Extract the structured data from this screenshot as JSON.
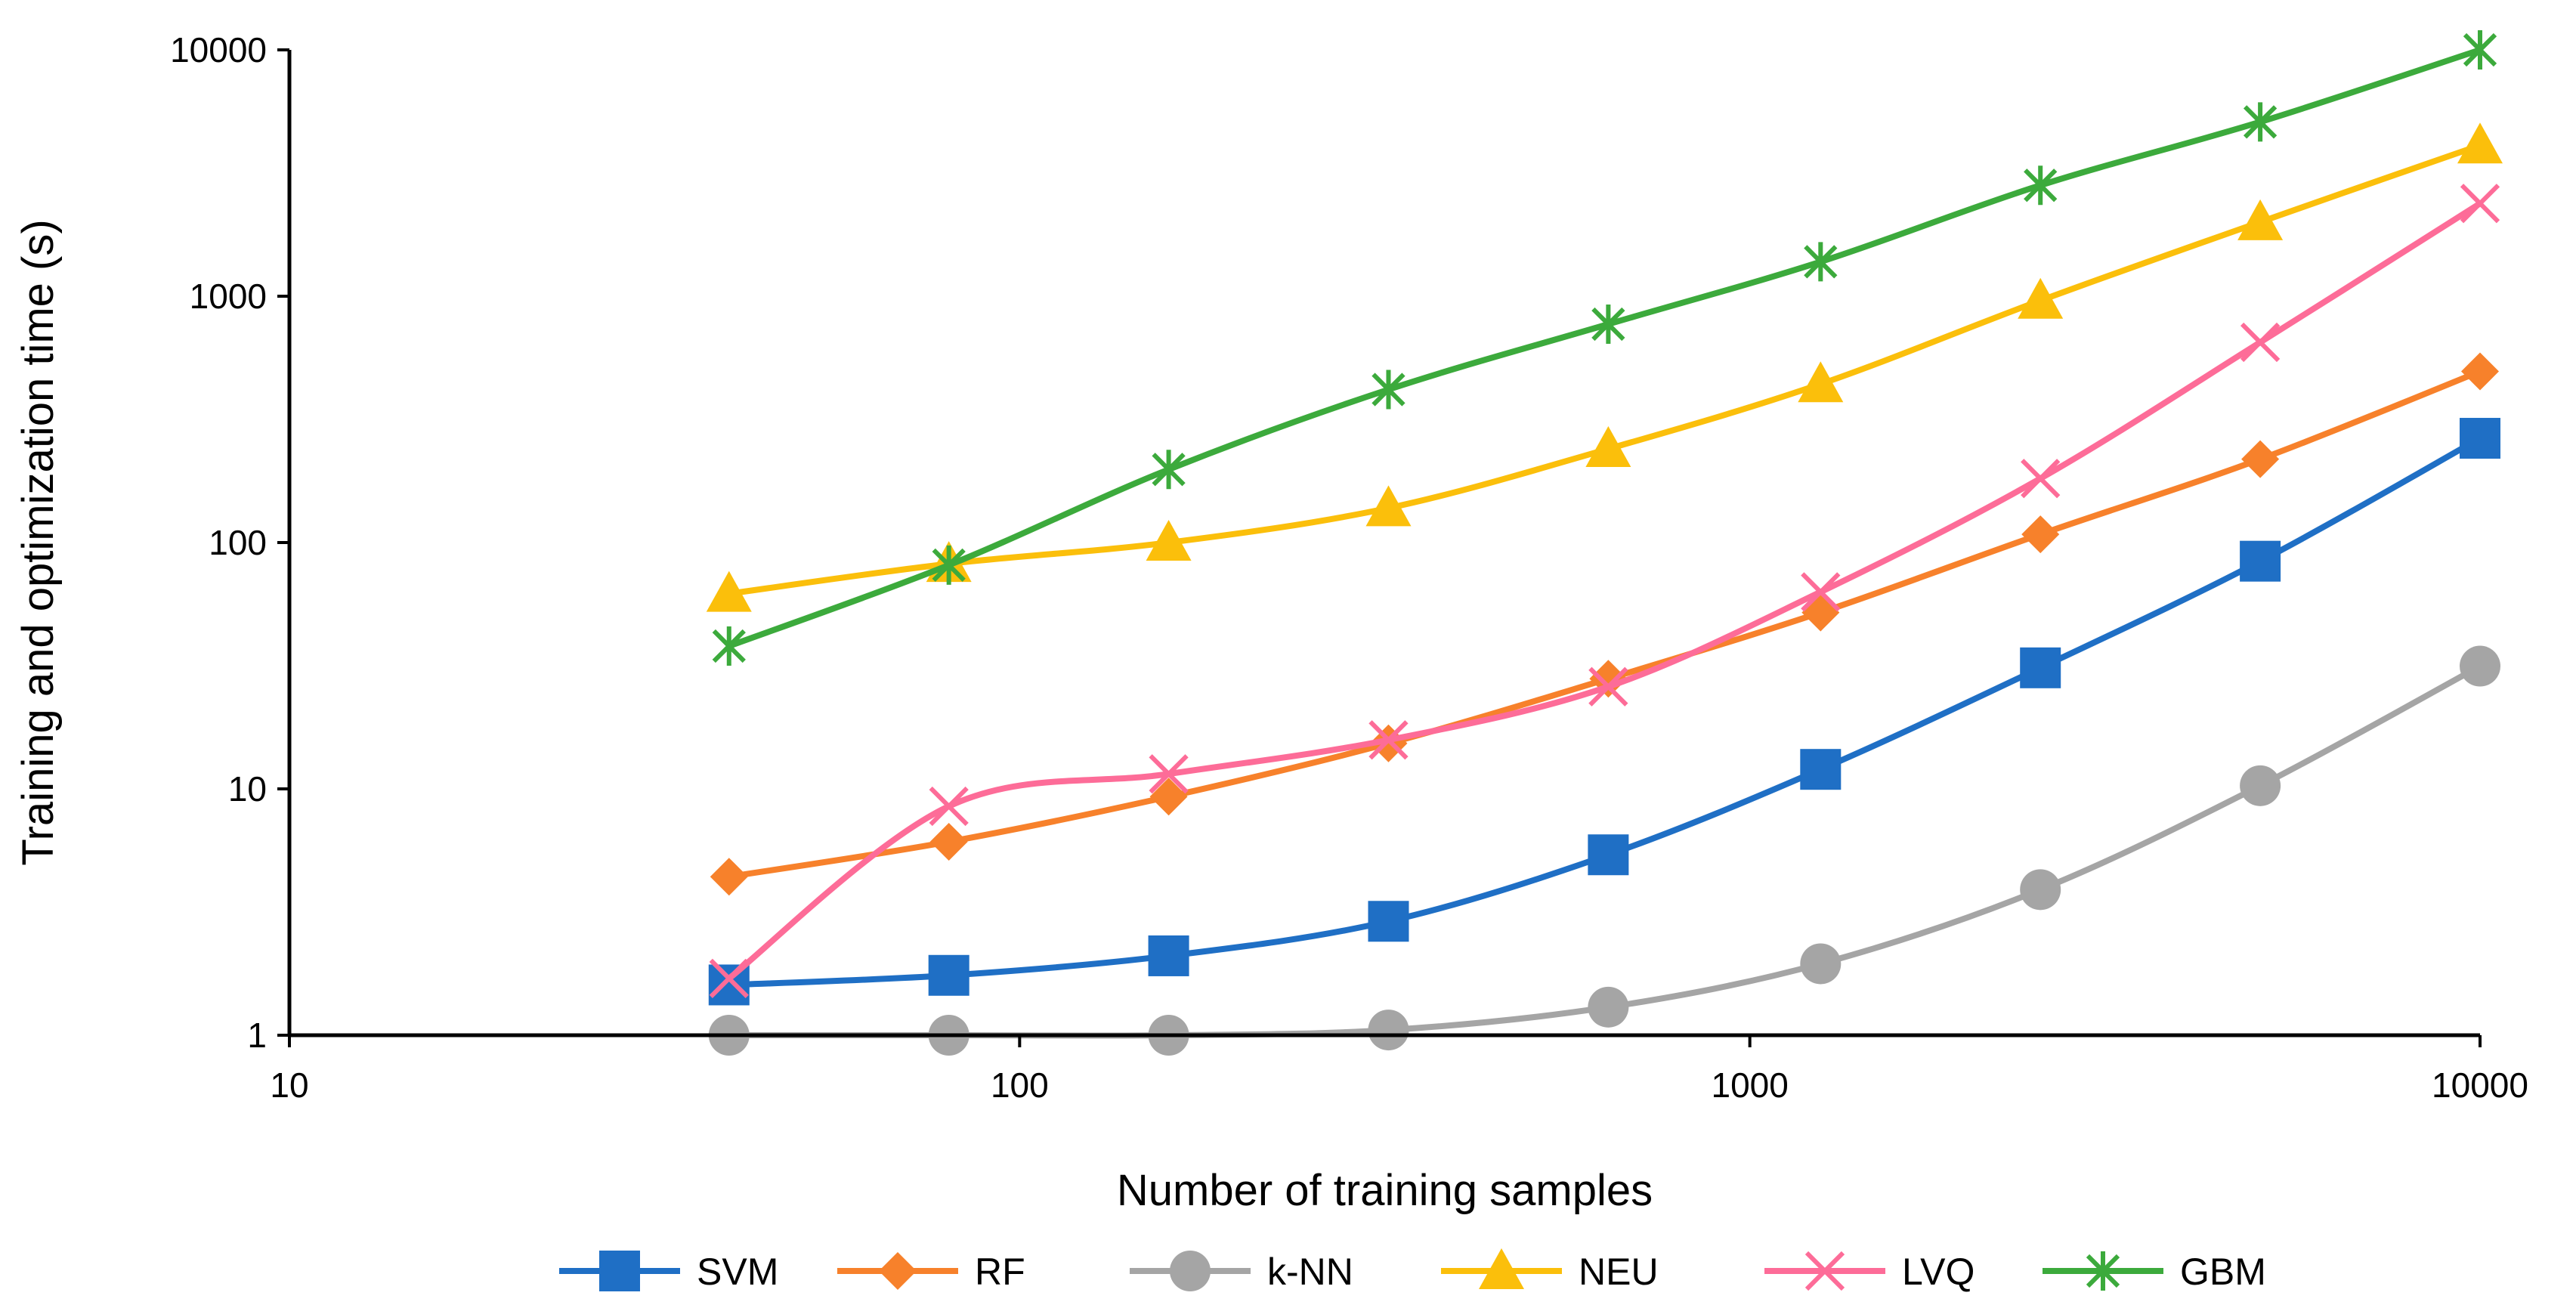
{
  "chart_data": {
    "type": "line",
    "title": "",
    "xlabel": "Number of training samples",
    "ylabel": "Training and optimization time (s)",
    "xscale": "log",
    "yscale": "log",
    "xlim": [
      10,
      10000
    ],
    "ylim": [
      1,
      10000
    ],
    "xticks": [
      10,
      100,
      1000,
      10000
    ],
    "xtick_labels": [
      "10",
      "100",
      "1000",
      "10000"
    ],
    "yticks": [
      1,
      10,
      100,
      1000,
      10000
    ],
    "ytick_labels": [
      "1",
      "10",
      "100",
      "1000",
      "10000"
    ],
    "grid": false,
    "legend_position": "bottom",
    "x": [
      40,
      80,
      160,
      320,
      640,
      1250,
      2500,
      5000,
      10000
    ],
    "series": [
      {
        "name": "SVM",
        "color": "#1f6fc5",
        "marker": "square",
        "values": [
          1.6,
          1.75,
          2.1,
          2.9,
          5.4,
          12,
          31,
          84,
          265
        ]
      },
      {
        "name": "RF",
        "color": "#f7812b",
        "marker": "diamond",
        "values": [
          4.4,
          6.1,
          9.3,
          15.3,
          28,
          52,
          108,
          218,
          495
        ]
      },
      {
        "name": "k-NN",
        "color": "#a5a5a5",
        "marker": "circle",
        "values": [
          1.0,
          1.0,
          1.0,
          1.05,
          1.3,
          1.95,
          3.9,
          10.3,
          31.5
        ]
      },
      {
        "name": "NEU",
        "color": "#fbbf0b",
        "marker": "triangle",
        "values": [
          62,
          82,
          100,
          138,
          240,
          440,
          960,
          2000,
          4100
        ]
      },
      {
        "name": "LVQ",
        "color": "#fd6c98",
        "marker": "x",
        "values": [
          1.7,
          8.5,
          11.5,
          15.8,
          26,
          63,
          182,
          650,
          2380
        ]
      },
      {
        "name": "GBM",
        "color": "#3caa3c",
        "marker": "asterisk",
        "values": [
          38,
          81,
          198,
          418,
          770,
          1380,
          2820,
          5100,
          10000
        ]
      }
    ]
  }
}
